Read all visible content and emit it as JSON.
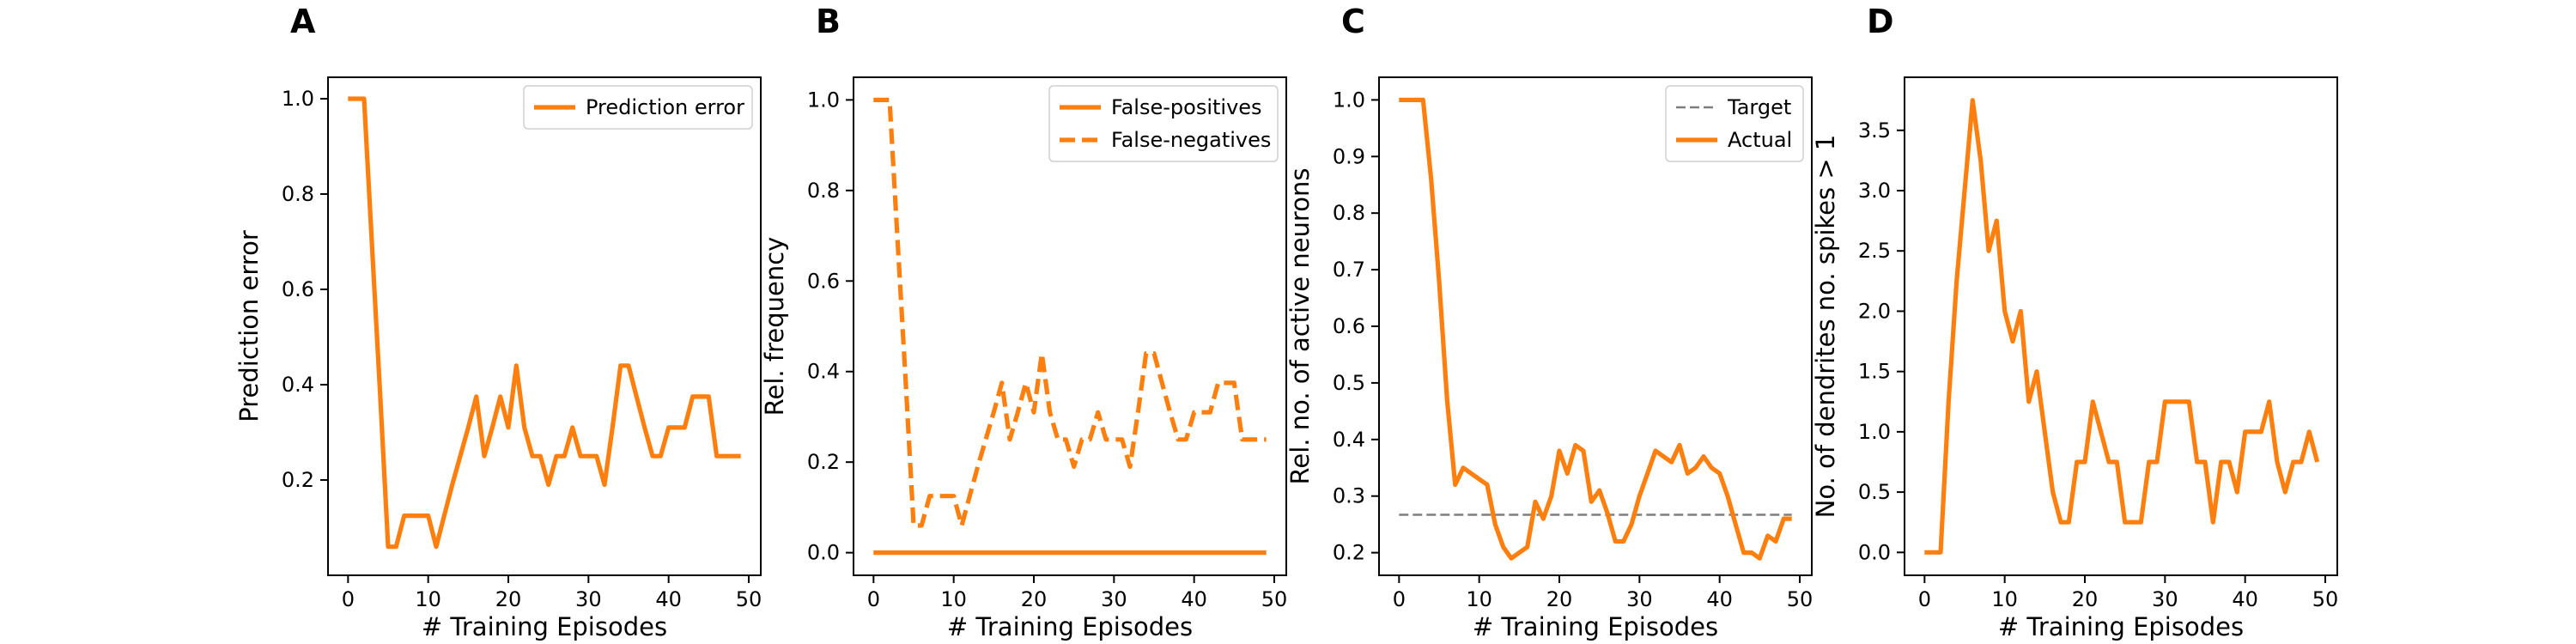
{
  "colors": {
    "series": "#ff7f0e",
    "target": "#7f7f7f",
    "axis": "#000000"
  },
  "chart_data": [
    {
      "panel": "A",
      "type": "line",
      "xlabel": "# Training Episodes",
      "ylabel": "Prediction error",
      "xlim": [
        -2.5,
        51.5
      ],
      "ylim": [
        0.0,
        1.045
      ],
      "xticks": [
        0,
        10,
        20,
        30,
        40,
        50
      ],
      "yticks": [
        0.2,
        0.4,
        0.6,
        0.8,
        1.0
      ],
      "ytick_labels": [
        "0.2",
        "0.4",
        "0.6",
        "0.8",
        "1.0"
      ],
      "legend": {
        "placement": "top-right"
      },
      "series": [
        {
          "name": "Prediction error",
          "style": "solid",
          "x": [
            0,
            1,
            2,
            3,
            4,
            5,
            6,
            7,
            8,
            9,
            10,
            11,
            12,
            13,
            14,
            15,
            16,
            17,
            18,
            19,
            20,
            21,
            22,
            23,
            24,
            25,
            26,
            27,
            28,
            29,
            30,
            31,
            32,
            33,
            34,
            35,
            36,
            37,
            38,
            39,
            40,
            41,
            42,
            43,
            44,
            45,
            46,
            47,
            48,
            49
          ],
          "y": [
            1.0,
            1.0,
            1.0,
            0.69,
            0.38,
            0.06,
            0.06,
            0.125,
            0.125,
            0.125,
            0.125,
            0.06,
            0.125,
            0.19,
            0.25,
            0.31,
            0.375,
            0.25,
            0.31,
            0.375,
            0.31,
            0.44,
            0.31,
            0.25,
            0.25,
            0.19,
            0.25,
            0.25,
            0.31,
            0.25,
            0.25,
            0.25,
            0.19,
            0.31,
            0.44,
            0.44,
            0.375,
            0.31,
            0.25,
            0.25,
            0.31,
            0.31,
            0.31,
            0.375,
            0.375,
            0.375,
            0.25,
            0.25,
            0.25,
            0.25
          ]
        }
      ]
    },
    {
      "panel": "B",
      "type": "line",
      "xlabel": "# Training Episodes",
      "ylabel": "Rel. frequency",
      "xlim": [
        -2.5,
        51.5
      ],
      "ylim": [
        -0.05,
        1.05
      ],
      "xticks": [
        0,
        10,
        20,
        30,
        40,
        50
      ],
      "yticks": [
        0.0,
        0.2,
        0.4,
        0.6,
        0.8,
        1.0
      ],
      "ytick_labels": [
        "0.0",
        "0.2",
        "0.4",
        "0.6",
        "0.8",
        "1.0"
      ],
      "legend": {
        "placement": "top-right"
      },
      "series": [
        {
          "name": "False-positives",
          "style": "solid",
          "x": [
            0,
            1,
            2,
            3,
            4,
            5,
            6,
            7,
            8,
            9,
            10,
            11,
            12,
            13,
            14,
            15,
            16,
            17,
            18,
            19,
            20,
            21,
            22,
            23,
            24,
            25,
            26,
            27,
            28,
            29,
            30,
            31,
            32,
            33,
            34,
            35,
            36,
            37,
            38,
            39,
            40,
            41,
            42,
            43,
            44,
            45,
            46,
            47,
            48,
            49
          ],
          "y": [
            0,
            0,
            0,
            0,
            0,
            0,
            0,
            0,
            0,
            0,
            0,
            0,
            0,
            0,
            0,
            0,
            0,
            0,
            0,
            0,
            0,
            0,
            0,
            0,
            0,
            0,
            0,
            0,
            0,
            0,
            0,
            0,
            0,
            0,
            0,
            0,
            0,
            0,
            0,
            0,
            0,
            0,
            0,
            0,
            0,
            0,
            0,
            0,
            0,
            0
          ]
        },
        {
          "name": "False-negatives",
          "style": "dashed",
          "x": [
            0,
            1,
            2,
            3,
            4,
            5,
            6,
            7,
            8,
            9,
            10,
            11,
            12,
            13,
            14,
            15,
            16,
            17,
            18,
            19,
            20,
            21,
            22,
            23,
            24,
            25,
            26,
            27,
            28,
            29,
            30,
            31,
            32,
            33,
            34,
            35,
            36,
            37,
            38,
            39,
            40,
            41,
            42,
            43,
            44,
            45,
            46,
            47,
            48,
            49
          ],
          "y": [
            1.0,
            1.0,
            1.0,
            0.69,
            0.38,
            0.06,
            0.06,
            0.125,
            0.125,
            0.125,
            0.125,
            0.06,
            0.125,
            0.19,
            0.25,
            0.31,
            0.375,
            0.25,
            0.31,
            0.375,
            0.31,
            0.44,
            0.31,
            0.25,
            0.25,
            0.19,
            0.25,
            0.25,
            0.31,
            0.25,
            0.25,
            0.25,
            0.19,
            0.31,
            0.44,
            0.44,
            0.375,
            0.31,
            0.25,
            0.25,
            0.31,
            0.31,
            0.31,
            0.375,
            0.375,
            0.375,
            0.25,
            0.25,
            0.25,
            0.25
          ]
        }
      ]
    },
    {
      "panel": "C",
      "type": "line",
      "xlabel": "# Training Episodes",
      "ylabel": "Rel. no. of active neurons",
      "xlim": [
        -2.5,
        51.5
      ],
      "ylim": [
        0.16,
        1.04
      ],
      "xticks": [
        0,
        10,
        20,
        30,
        40,
        50
      ],
      "yticks": [
        0.2,
        0.3,
        0.4,
        0.5,
        0.6,
        0.7,
        0.8,
        0.9,
        1.0
      ],
      "ytick_labels": [
        "0.2",
        "0.3",
        "0.4",
        "0.5",
        "0.6",
        "0.7",
        "0.8",
        "0.9",
        "1.0"
      ],
      "legend": {
        "placement": "top-right"
      },
      "series": [
        {
          "name": "Target",
          "style": "dashed",
          "x": [
            0,
            49
          ],
          "y": [
            0.267,
            0.267
          ]
        },
        {
          "name": "Actual",
          "style": "solid",
          "x": [
            0,
            1,
            2,
            3,
            4,
            5,
            6,
            7,
            8,
            9,
            10,
            11,
            12,
            13,
            14,
            15,
            16,
            17,
            18,
            19,
            20,
            21,
            22,
            23,
            24,
            25,
            26,
            27,
            28,
            29,
            30,
            31,
            32,
            33,
            34,
            35,
            36,
            37,
            38,
            39,
            40,
            41,
            42,
            43,
            44,
            45,
            46,
            47,
            48,
            49
          ],
          "y": [
            1.0,
            1.0,
            1.0,
            1.0,
            0.86,
            0.68,
            0.47,
            0.32,
            0.35,
            0.34,
            0.33,
            0.32,
            0.25,
            0.21,
            0.19,
            0.2,
            0.21,
            0.29,
            0.26,
            0.3,
            0.38,
            0.34,
            0.39,
            0.38,
            0.29,
            0.31,
            0.27,
            0.22,
            0.22,
            0.25,
            0.3,
            0.34,
            0.38,
            0.37,
            0.36,
            0.39,
            0.34,
            0.35,
            0.37,
            0.35,
            0.34,
            0.3,
            0.25,
            0.2,
            0.2,
            0.19,
            0.23,
            0.22,
            0.26,
            0.26
          ]
        }
      ]
    },
    {
      "panel": "D",
      "type": "line",
      "xlabel": "# Training Episodes",
      "ylabel": "No. of dendrites no. spikes > 1",
      "xlim": [
        -2.5,
        51.5
      ],
      "ylim": [
        -0.19,
        3.94
      ],
      "xticks": [
        0,
        10,
        20,
        30,
        40,
        50
      ],
      "yticks": [
        0.0,
        0.5,
        1.0,
        1.5,
        2.0,
        2.5,
        3.0,
        3.5
      ],
      "ytick_labels": [
        "0.0",
        "0.5",
        "1.0",
        "1.5",
        "2.0",
        "2.5",
        "3.0",
        "3.5"
      ],
      "legend": null,
      "series": [
        {
          "name": "",
          "style": "solid",
          "x": [
            0,
            1,
            2,
            3,
            4,
            5,
            6,
            7,
            8,
            9,
            10,
            11,
            12,
            13,
            14,
            15,
            16,
            17,
            18,
            19,
            20,
            21,
            22,
            23,
            24,
            25,
            26,
            27,
            28,
            29,
            30,
            31,
            32,
            33,
            34,
            35,
            36,
            37,
            38,
            39,
            40,
            41,
            42,
            43,
            44,
            45,
            46,
            47,
            48,
            49
          ],
          "y": [
            0,
            0,
            0,
            1.25,
            2.25,
            3.0,
            3.75,
            3.25,
            2.5,
            2.75,
            2.0,
            1.75,
            2.0,
            1.25,
            1.5,
            1.0,
            0.5,
            0.25,
            0.25,
            0.75,
            0.75,
            1.25,
            1.0,
            0.75,
            0.75,
            0.25,
            0.25,
            0.25,
            0.75,
            0.75,
            1.25,
            1.25,
            1.25,
            1.25,
            0.75,
            0.75,
            0.25,
            0.75,
            0.75,
            0.5,
            1.0,
            1.0,
            1.0,
            1.25,
            0.75,
            0.5,
            0.75,
            0.75,
            1.0,
            0.75
          ]
        }
      ]
    }
  ]
}
